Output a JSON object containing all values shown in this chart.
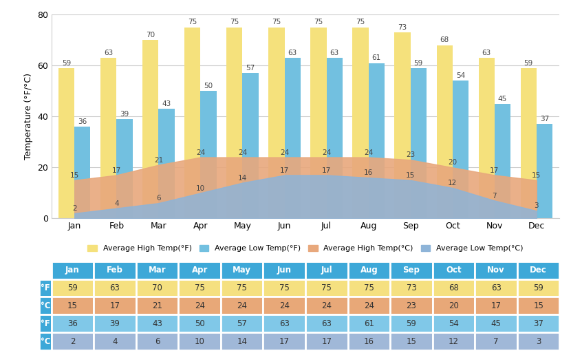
{
  "months": [
    "Jan",
    "Feb",
    "Mar",
    "Apr",
    "May",
    "Jun",
    "Jul",
    "Aug",
    "Sep",
    "Oct",
    "Nov",
    "Dec"
  ],
  "high_f": [
    59,
    63,
    70,
    75,
    75,
    75,
    75,
    75,
    73,
    68,
    63,
    59
  ],
  "low_f": [
    36,
    39,
    43,
    50,
    57,
    63,
    63,
    61,
    59,
    54,
    45,
    37
  ],
  "high_c": [
    15,
    17,
    21,
    24,
    24,
    24,
    24,
    24,
    23,
    20,
    17,
    15
  ],
  "low_c": [
    2,
    4,
    6,
    10,
    14,
    17,
    17,
    16,
    15,
    12,
    7,
    3
  ],
  "bar_high_f_color": "#F5E17C",
  "bar_low_f_color": "#72C0E0",
  "area_high_c_color": "#E8A87C",
  "area_low_c_color": "#8EB4D8",
  "ylabel": "Temperature (°F/°C)",
  "ylim": [
    0,
    80
  ],
  "yticks": [
    0,
    20,
    40,
    60,
    80
  ],
  "grid_color": "#cccccc",
  "bg_color": "#ffffff",
  "table_header_color": "#3DA8D8",
  "table_row1_color": "#F5E080",
  "table_row2_color": "#E8A878",
  "table_row3_color": "#80C8E8",
  "table_row4_color": "#A0B8D8",
  "table_label_color": "#3DA8D8",
  "legend_labels": [
    "Average High Temp(°F)",
    "Average Low Temp(°F)",
    "Average High Temp(°C)",
    "Average Low Temp(°C)"
  ]
}
